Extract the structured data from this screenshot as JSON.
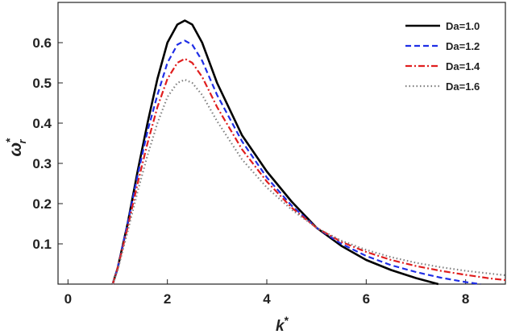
{
  "chart_data": {
    "type": "line",
    "title": "",
    "xlabel": "k",
    "xlabel_superscript": "*",
    "ylabel": "ω",
    "ylabel_superscript": "*",
    "ylabel_subscript": "r",
    "xlim": [
      -0.2,
      8.8
    ],
    "ylim": [
      0.0,
      0.7
    ],
    "x_ticks": [
      "0",
      "2",
      "4",
      "6",
      "8"
    ],
    "y_ticks": [
      "0.1",
      "0.2",
      "0.3",
      "0.4",
      "0.5",
      "0.6"
    ],
    "grid": false,
    "legend_position": "top-right",
    "series": [
      {
        "name": "Da=1.0",
        "color": "#000000",
        "style": "solid",
        "x": [
          0.9,
          1.0,
          1.2,
          1.4,
          1.6,
          1.8,
          2.0,
          2.2,
          2.35,
          2.5,
          2.7,
          3.0,
          3.5,
          4.0,
          4.5,
          5.0,
          5.5,
          6.0,
          6.5,
          7.0,
          7.45
        ],
        "y": [
          0.0,
          0.04,
          0.15,
          0.28,
          0.4,
          0.51,
          0.6,
          0.645,
          0.655,
          0.645,
          0.6,
          0.5,
          0.37,
          0.28,
          0.205,
          0.14,
          0.095,
          0.06,
          0.035,
          0.015,
          0.0
        ]
      },
      {
        "name": "Da=1.2",
        "color": "#1f2ee6",
        "style": "dashed",
        "x": [
          0.9,
          1.0,
          1.2,
          1.4,
          1.6,
          1.8,
          2.0,
          2.2,
          2.35,
          2.5,
          2.7,
          3.0,
          3.5,
          4.0,
          4.5,
          5.0,
          5.5,
          6.0,
          6.5,
          7.0,
          7.5,
          8.0,
          8.3
        ],
        "y": [
          0.0,
          0.04,
          0.15,
          0.27,
          0.38,
          0.47,
          0.55,
          0.595,
          0.605,
          0.595,
          0.555,
          0.47,
          0.355,
          0.265,
          0.195,
          0.14,
          0.1,
          0.07,
          0.047,
          0.03,
          0.016,
          0.005,
          0.0
        ]
      },
      {
        "name": "Da=1.4",
        "color": "#e01e1e",
        "style": "dashdot",
        "x": [
          0.9,
          1.0,
          1.2,
          1.4,
          1.6,
          1.8,
          2.0,
          2.2,
          2.35,
          2.5,
          2.7,
          3.0,
          3.5,
          4.0,
          4.5,
          5.0,
          5.5,
          6.0,
          6.5,
          7.0,
          7.5,
          8.0,
          8.5,
          8.8
        ],
        "y": [
          0.0,
          0.04,
          0.14,
          0.25,
          0.35,
          0.44,
          0.51,
          0.55,
          0.56,
          0.55,
          0.515,
          0.44,
          0.335,
          0.255,
          0.19,
          0.14,
          0.105,
          0.08,
          0.06,
          0.045,
          0.033,
          0.023,
          0.014,
          0.01
        ]
      },
      {
        "name": "Da=1.6",
        "color": "#808080",
        "style": "dotted",
        "x": [
          0.9,
          1.0,
          1.2,
          1.4,
          1.6,
          1.8,
          2.0,
          2.2,
          2.35,
          2.5,
          2.7,
          3.0,
          3.5,
          4.0,
          4.5,
          5.0,
          5.5,
          6.0,
          6.5,
          7.0,
          7.5,
          8.0,
          8.5,
          8.8
        ],
        "y": [
          0.0,
          0.035,
          0.13,
          0.23,
          0.32,
          0.4,
          0.465,
          0.5,
          0.508,
          0.5,
          0.47,
          0.405,
          0.31,
          0.24,
          0.185,
          0.14,
          0.108,
          0.085,
          0.067,
          0.053,
          0.042,
          0.033,
          0.026,
          0.022
        ]
      }
    ]
  }
}
